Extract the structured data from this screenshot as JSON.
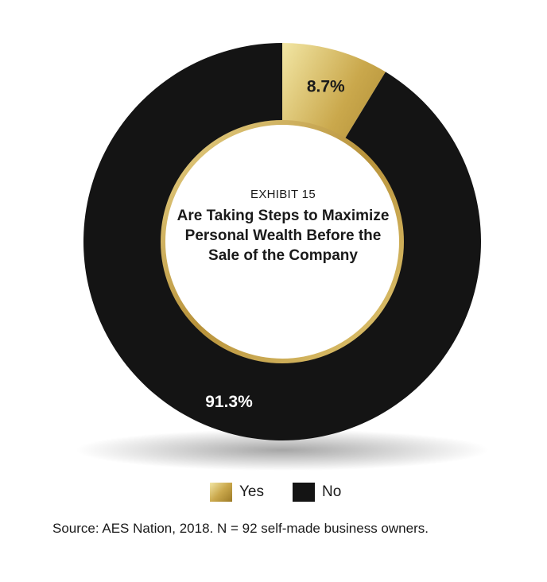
{
  "colors": {
    "yes": "#c9a84a",
    "no": "#141414",
    "ring": "#c7a446"
  },
  "exhibit_label": "EXHIBIT 15",
  "chart_data": {
    "type": "pie",
    "style": "donut",
    "title": "Are Taking Steps to Maximize Personal Wealth Before the Sale of the Company",
    "categories": [
      "Yes",
      "No"
    ],
    "values": [
      8.7,
      91.3
    ],
    "data_labels": [
      "8.7%",
      "91.3%"
    ],
    "legend": {
      "placement": "bottom",
      "items": [
        "Yes",
        "No"
      ]
    }
  },
  "source": "Source: AES Nation, 2018. N = 92 self-made business owners."
}
